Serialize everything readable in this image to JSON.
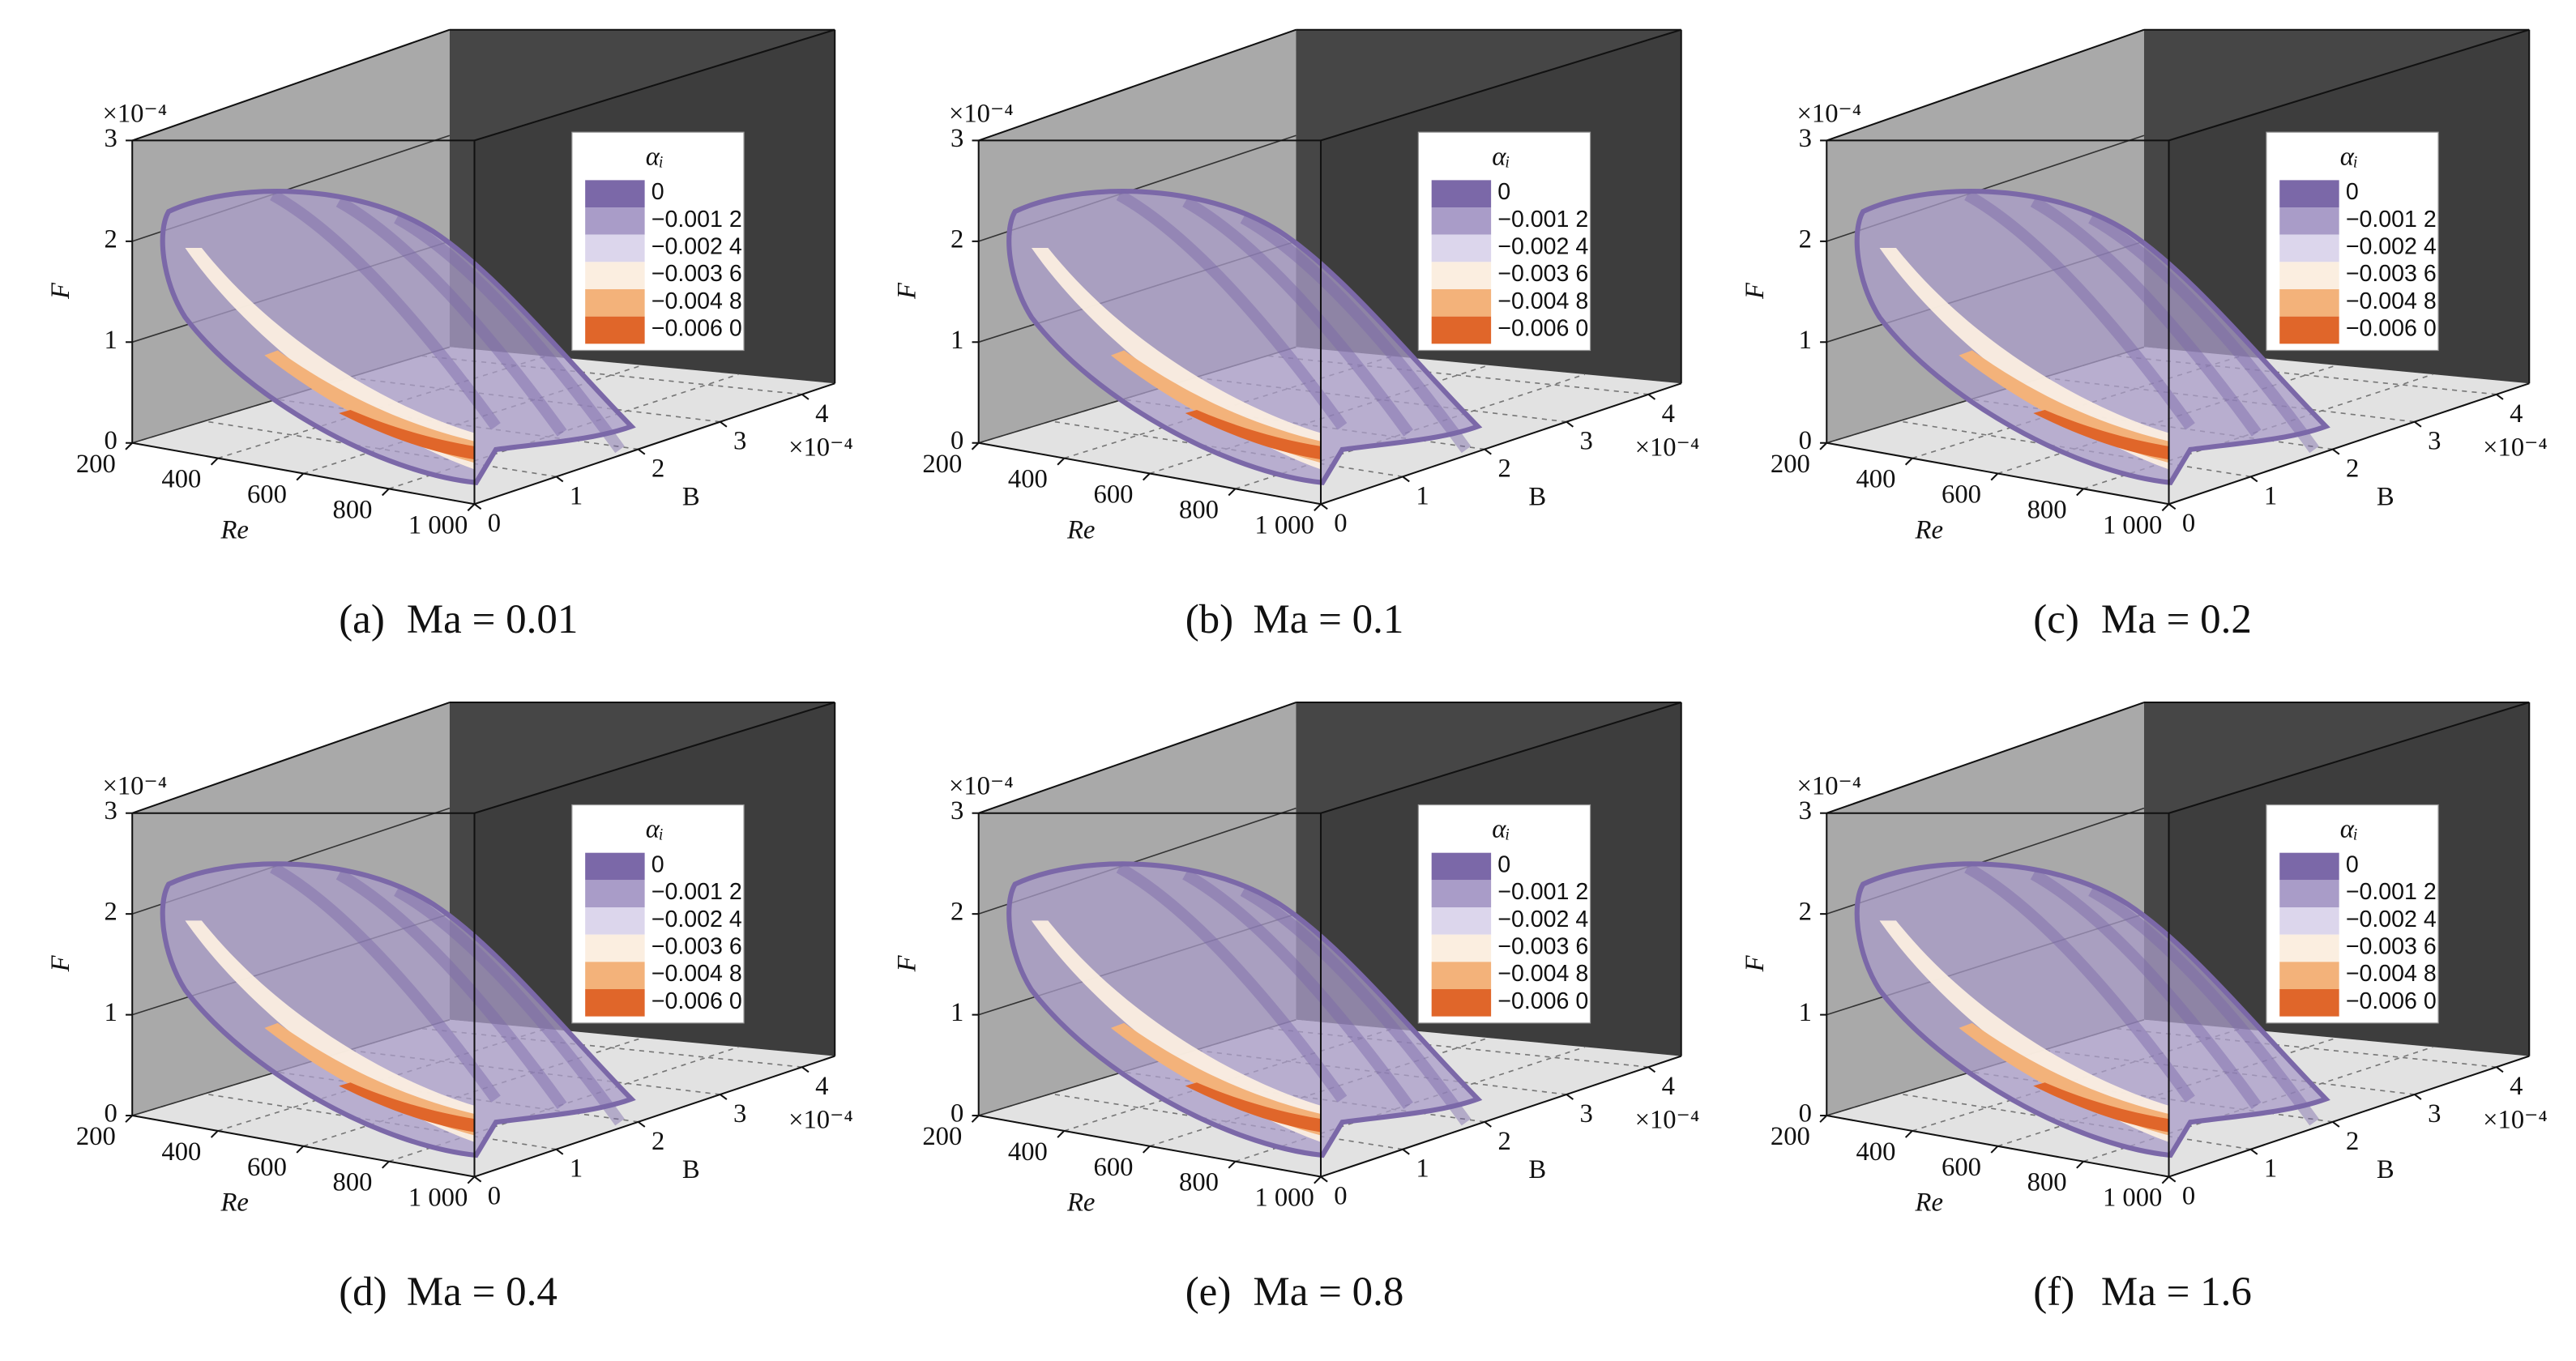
{
  "chart_data": [
    {
      "type": "surface3d",
      "subtitle_label": "(a)",
      "subtitle": "Ma = 0.01",
      "x_label": "Re",
      "y_label": "B",
      "z_label": "F",
      "xlim": [
        200,
        1000
      ],
      "xticks": [
        200,
        400,
        600,
        800,
        {
          "value": 1000,
          "label": "1 000"
        }
      ],
      "ylim": [
        0,
        4.4
      ],
      "yticks": [
        0,
        1,
        2,
        3,
        4
      ],
      "y_multiplier": "×10⁻⁴",
      "zlim": [
        0,
        3
      ],
      "zticks": [
        0,
        1,
        2,
        3
      ],
      "z_multiplier": "×10⁻⁴",
      "legend_title": "αᵢ",
      "levels": [
        0,
        {
          "value": -0.0012,
          "label": "−0.001 2"
        },
        {
          "value": -0.0024,
          "label": "−0.002 4"
        },
        {
          "value": -0.0036,
          "label": "−0.003 6"
        },
        {
          "value": -0.0048,
          "label": "−0.004 8"
        },
        {
          "value": -0.006,
          "label": "−0.006 0"
        }
      ],
      "level_colors": [
        "#7b68a8",
        "#a99cc8",
        "#dcd6ec",
        "#fbeee0",
        "#f3b27a",
        "#e0662a"
      ]
    },
    {
      "type": "surface3d",
      "subtitle_label": "(b)",
      "subtitle": "Ma = 0.1",
      "x_label": "Re",
      "y_label": "B",
      "z_label": "F",
      "xlim": [
        200,
        1000
      ],
      "xticks": [
        200,
        400,
        600,
        800,
        {
          "value": 1000,
          "label": "1 000"
        }
      ],
      "ylim": [
        0,
        4.4
      ],
      "yticks": [
        0,
        1,
        2,
        3,
        4
      ],
      "y_multiplier": "×10⁻⁴",
      "zlim": [
        0,
        3
      ],
      "zticks": [
        0,
        1,
        2,
        3
      ],
      "z_multiplier": "×10⁻⁴",
      "legend_title": "αᵢ",
      "levels": [
        0,
        {
          "value": -0.0012,
          "label": "−0.001 2"
        },
        {
          "value": -0.0024,
          "label": "−0.002 4"
        },
        {
          "value": -0.0036,
          "label": "−0.003 6"
        },
        {
          "value": -0.0048,
          "label": "−0.004 8"
        },
        {
          "value": -0.006,
          "label": "−0.006 0"
        }
      ],
      "level_colors": [
        "#7b68a8",
        "#a99cc8",
        "#dcd6ec",
        "#fbeee0",
        "#f3b27a",
        "#e0662a"
      ]
    },
    {
      "type": "surface3d",
      "subtitle_label": "(c)",
      "subtitle": "Ma = 0.2",
      "x_label": "Re",
      "y_label": "B",
      "z_label": "F",
      "xlim": [
        200,
        1000
      ],
      "xticks": [
        200,
        400,
        600,
        800,
        {
          "value": 1000,
          "label": "1 000"
        }
      ],
      "ylim": [
        0,
        4.4
      ],
      "yticks": [
        0,
        1,
        2,
        3,
        4
      ],
      "y_multiplier": "×10⁻⁴",
      "zlim": [
        0,
        3
      ],
      "zticks": [
        0,
        1,
        2,
        3
      ],
      "z_multiplier": "×10⁻⁴",
      "legend_title": "αᵢ",
      "levels": [
        0,
        {
          "value": -0.0012,
          "label": "−0.001 2"
        },
        {
          "value": -0.0024,
          "label": "−0.002 4"
        },
        {
          "value": -0.0036,
          "label": "−0.003 6"
        },
        {
          "value": -0.0048,
          "label": "−0.004 8"
        },
        {
          "value": -0.006,
          "label": "−0.006 0"
        }
      ],
      "level_colors": [
        "#7b68a8",
        "#a99cc8",
        "#dcd6ec",
        "#fbeee0",
        "#f3b27a",
        "#e0662a"
      ]
    },
    {
      "type": "surface3d",
      "subtitle_label": "(d)",
      "subtitle": "Ma = 0.4",
      "x_label": "Re",
      "y_label": "B",
      "z_label": "F",
      "xlim": [
        200,
        1000
      ],
      "xticks": [
        200,
        400,
        600,
        800,
        {
          "value": 1000,
          "label": "1 000"
        }
      ],
      "ylim": [
        0,
        4.4
      ],
      "yticks": [
        0,
        1,
        2,
        3,
        4
      ],
      "y_multiplier": "×10⁻⁴",
      "zlim": [
        0,
        3
      ],
      "zticks": [
        0,
        1,
        2,
        3
      ],
      "z_multiplier": "×10⁻⁴",
      "legend_title": "αᵢ",
      "levels": [
        0,
        {
          "value": -0.0012,
          "label": "−0.001 2"
        },
        {
          "value": -0.0024,
          "label": "−0.002 4"
        },
        {
          "value": -0.0036,
          "label": "−0.003 6"
        },
        {
          "value": -0.0048,
          "label": "−0.004 8"
        },
        {
          "value": -0.006,
          "label": "−0.006 0"
        }
      ],
      "level_colors": [
        "#7b68a8",
        "#a99cc8",
        "#dcd6ec",
        "#fbeee0",
        "#f3b27a",
        "#e0662a"
      ]
    },
    {
      "type": "surface3d",
      "subtitle_label": "(e)",
      "subtitle": "Ma = 0.8",
      "x_label": "Re",
      "y_label": "B",
      "z_label": "F",
      "xlim": [
        200,
        1000
      ],
      "xticks": [
        200,
        400,
        600,
        800,
        {
          "value": 1000,
          "label": "1 000"
        }
      ],
      "ylim": [
        0,
        4.4
      ],
      "yticks": [
        0,
        1,
        2,
        3,
        4
      ],
      "y_multiplier": "×10⁻⁴",
      "zlim": [
        0,
        3
      ],
      "zticks": [
        0,
        1,
        2,
        3
      ],
      "z_multiplier": "×10⁻⁴",
      "legend_title": "αᵢ",
      "levels": [
        0,
        {
          "value": -0.0012,
          "label": "−0.001 2"
        },
        {
          "value": -0.0024,
          "label": "−0.002 4"
        },
        {
          "value": -0.0036,
          "label": "−0.003 6"
        },
        {
          "value": -0.0048,
          "label": "−0.004 8"
        },
        {
          "value": -0.006,
          "label": "−0.006 0"
        }
      ],
      "level_colors": [
        "#7b68a8",
        "#a99cc8",
        "#dcd6ec",
        "#fbeee0",
        "#f3b27a",
        "#e0662a"
      ]
    },
    {
      "type": "surface3d",
      "subtitle_label": "(f)",
      "subtitle": "Ma = 1.6",
      "x_label": "Re",
      "y_label": "B",
      "z_label": "F",
      "xlim": [
        200,
        1000
      ],
      "xticks": [
        200,
        400,
        600,
        800,
        {
          "value": 1000,
          "label": "1 000"
        }
      ],
      "ylim": [
        0,
        4.4
      ],
      "yticks": [
        0,
        1,
        2,
        3,
        4
      ],
      "y_multiplier": "×10⁻⁴",
      "zlim": [
        0,
        3
      ],
      "zticks": [
        0,
        1,
        2,
        3
      ],
      "z_multiplier": "×10⁻⁴",
      "legend_title": "αᵢ",
      "levels": [
        0,
        {
          "value": -0.0012,
          "label": "−0.001 2"
        },
        {
          "value": -0.0024,
          "label": "−0.002 4"
        },
        {
          "value": -0.0036,
          "label": "−0.003 6"
        },
        {
          "value": -0.0048,
          "label": "−0.004 8"
        },
        {
          "value": -0.006,
          "label": "−0.006 0"
        }
      ],
      "level_colors": [
        "#7b68a8",
        "#a99cc8",
        "#dcd6ec",
        "#fbeee0",
        "#f3b27a",
        "#e0662a"
      ]
    }
  ]
}
